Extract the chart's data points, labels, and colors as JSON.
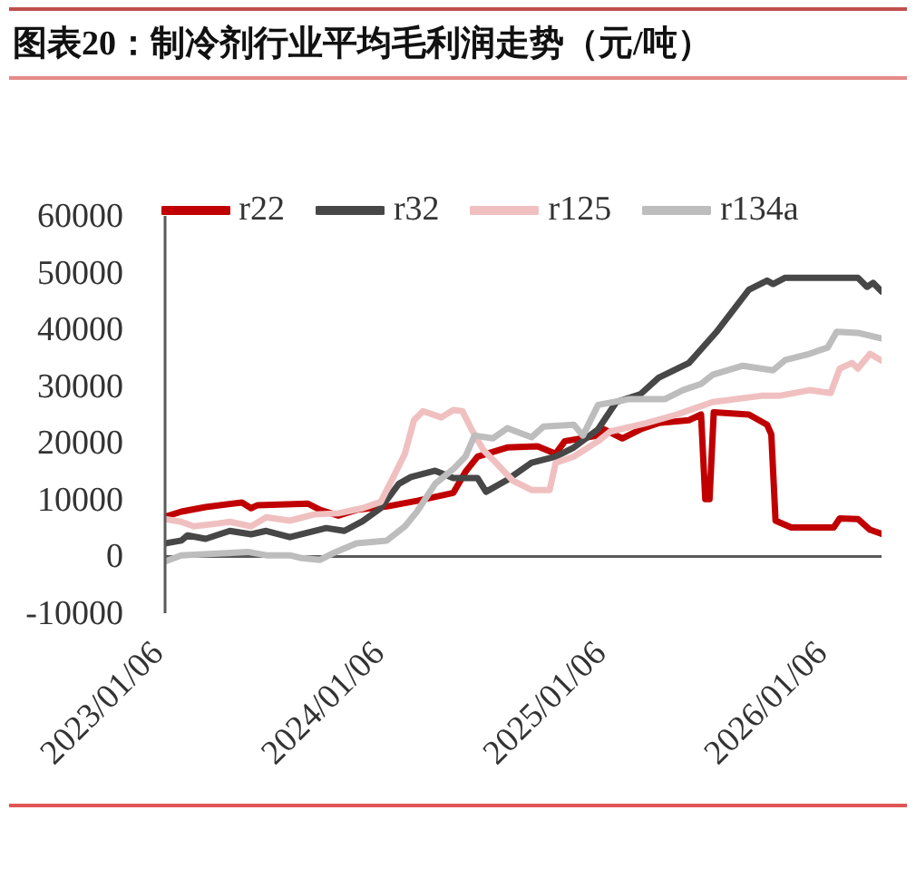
{
  "chart_data": {
    "type": "line",
    "title": "图表20：制冷剂行业平均毛利润走势（元/吨）",
    "xlim": [
      "2023-01-06",
      "2026-04-03"
    ],
    "xticks": [
      {
        "value": "2023-01-06",
        "label": "2023/01/06"
      },
      {
        "value": "2024-01-06",
        "label": "2024/01/06"
      },
      {
        "value": "2025-01-06",
        "label": "2025/01/06"
      },
      {
        "value": "2026-01-06",
        "label": "2026/01/06"
      }
    ],
    "ylim": [
      -10000,
      60000
    ],
    "yticks": [
      -10000,
      0,
      10000,
      20000,
      30000,
      40000,
      50000,
      60000
    ],
    "legend": "top",
    "marker": "none",
    "line_style": "solid",
    "series": [
      {
        "name": "r22",
        "color": "#c00000",
        "x": [
          "2023-01-06",
          "2023-02-02",
          "2023-03-14",
          "2023-05-13",
          "2023-05-28",
          "2023-06-07",
          "2023-08-30",
          "2023-09-19",
          "2023-10-19",
          "2023-11-18",
          "2024-01-07",
          "2024-02-26",
          "2024-04-26",
          "2024-05-16",
          "2024-06-05",
          "2024-07-24",
          "2024-09-12",
          "2024-10-12",
          "2024-10-27",
          "2024-12-21",
          "2024-12-31",
          "2025-01-30",
          "2025-03-01",
          "2025-03-31",
          "2025-05-20",
          "2025-06-09",
          "2025-06-16",
          "2025-06-23",
          "2025-06-30",
          "2025-08-27",
          "2025-09-26",
          "2025-10-03",
          "2025-10-10",
          "2025-11-05",
          "2026-01-14",
          "2026-01-24",
          "2026-02-23",
          "2026-03-15",
          "2026-04-03"
        ],
        "values": [
          7000,
          7900,
          8700,
          9500,
          8500,
          9000,
          9300,
          8200,
          7200,
          8200,
          8800,
          9800,
          11200,
          14900,
          17600,
          19200,
          19400,
          18100,
          20300,
          21300,
          22400,
          20800,
          22400,
          23500,
          24000,
          25000,
          10100,
          10100,
          25400,
          25000,
          23200,
          21500,
          6300,
          5100,
          5100,
          6700,
          6600,
          4700,
          4000
        ]
      },
      {
        "name": "r32",
        "color": "#474747",
        "x": [
          "2023-01-06",
          "2023-02-02",
          "2023-02-12",
          "2023-03-14",
          "2023-04-23",
          "2023-05-28",
          "2023-06-22",
          "2023-07-31",
          "2023-08-30",
          "2023-09-29",
          "2023-10-29",
          "2023-11-28",
          "2023-12-28",
          "2024-01-27",
          "2024-02-16",
          "2024-03-27",
          "2024-04-26",
          "2024-06-05",
          "2024-06-19",
          "2024-07-24",
          "2024-09-02",
          "2024-10-12",
          "2024-11-11",
          "2024-12-21",
          "2025-01-20",
          "2025-03-01",
          "2025-03-31",
          "2025-05-20",
          "2025-07-04",
          "2025-08-27",
          "2025-09-26",
          "2025-10-06",
          "2025-10-26",
          "2026-02-23",
          "2026-03-10",
          "2026-03-20",
          "2026-04-03"
        ],
        "values": [
          2300,
          2800,
          3700,
          3100,
          4500,
          3900,
          4500,
          3400,
          4200,
          5000,
          4500,
          6200,
          8500,
          12800,
          14000,
          15100,
          13800,
          13800,
          11400,
          13500,
          16500,
          17600,
          19200,
          22400,
          27200,
          28600,
          31500,
          34100,
          39500,
          47000,
          48600,
          48000,
          49100,
          49100,
          47500,
          48200,
          46700
        ]
      },
      {
        "name": "r125",
        "color": "#f0c0c0",
        "x": [
          "2023-01-06",
          "2023-02-02",
          "2023-02-22",
          "2023-04-03",
          "2023-04-23",
          "2023-05-28",
          "2023-06-22",
          "2023-07-31",
          "2023-09-09",
          "2023-10-19",
          "2023-11-28",
          "2023-12-28",
          "2024-01-17",
          "2024-02-06",
          "2024-02-21",
          "2024-03-07",
          "2024-04-06",
          "2024-04-26",
          "2024-05-11",
          "2024-05-26",
          "2024-06-15",
          "2024-06-30",
          "2024-07-24",
          "2024-08-03",
          "2024-09-02",
          "2024-10-02",
          "2024-10-12",
          "2024-11-11",
          "2024-12-21",
          "2025-01-10",
          "2025-03-11",
          "2025-04-30",
          "2025-06-28",
          "2025-09-16",
          "2025-10-16",
          "2025-12-05",
          "2026-01-09",
          "2026-01-24",
          "2026-02-13",
          "2026-02-23",
          "2026-03-15",
          "2026-04-03"
        ],
        "values": [
          6600,
          6100,
          5300,
          5800,
          6100,
          5300,
          6900,
          6300,
          7400,
          7600,
          8500,
          9600,
          13800,
          18100,
          24000,
          25600,
          24500,
          25800,
          25600,
          22400,
          18700,
          17100,
          14400,
          13300,
          11700,
          11700,
          16500,
          17600,
          20300,
          22000,
          23500,
          25000,
          27200,
          28300,
          28300,
          29300,
          28800,
          33100,
          34100,
          33100,
          35700,
          34500
        ]
      },
      {
        "name": "r134a",
        "color": "#bdbdbd",
        "x": [
          "2023-01-06",
          "2023-02-02",
          "2023-04-03",
          "2023-05-23",
          "2023-06-22",
          "2023-07-31",
          "2023-08-20",
          "2023-09-19",
          "2023-10-09",
          "2023-11-18",
          "2024-01-07",
          "2024-02-06",
          "2024-02-26",
          "2024-03-27",
          "2024-04-26",
          "2024-05-16",
          "2024-05-31",
          "2024-06-30",
          "2024-07-24",
          "2024-09-02",
          "2024-09-22",
          "2024-11-11",
          "2024-11-26",
          "2024-12-21",
          "2025-02-09",
          "2025-04-10",
          "2025-05-10",
          "2025-06-09",
          "2025-06-28",
          "2025-08-17",
          "2025-10-06",
          "2025-10-26",
          "2025-12-05",
          "2026-01-04",
          "2026-01-19",
          "2026-02-23",
          "2026-04-03"
        ],
        "values": [
          -900,
          200,
          500,
          800,
          200,
          200,
          -300,
          -600,
          500,
          2300,
          2800,
          5300,
          7900,
          12800,
          15400,
          17600,
          21300,
          20800,
          22600,
          21000,
          22900,
          23200,
          21300,
          26700,
          27700,
          27700,
          29300,
          30400,
          32000,
          33600,
          32800,
          34600,
          35700,
          36800,
          39600,
          39400,
          38400
        ]
      }
    ]
  }
}
